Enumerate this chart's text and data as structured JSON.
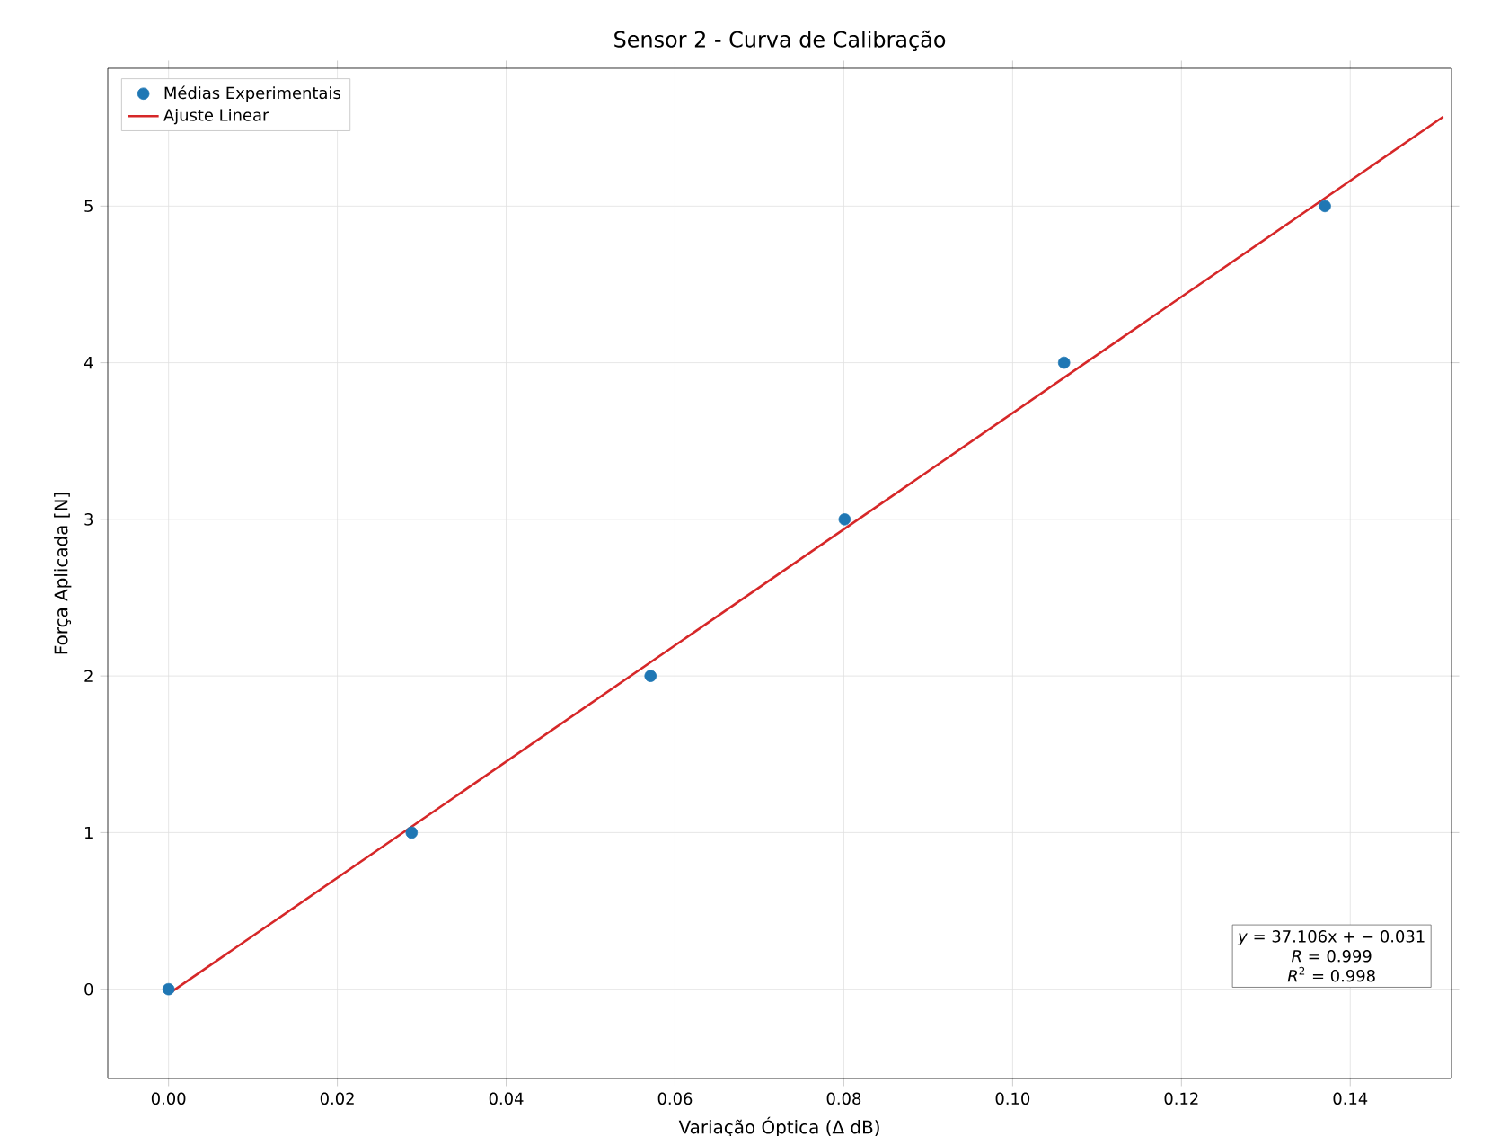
{
  "chart_data": {
    "type": "scatter",
    "title": "Sensor 2 - Curva de Calibração",
    "xlabel": "Variação Óptica (Δ dB)",
    "ylabel": "Força Aplicada [N]",
    "xlim": [
      -0.0072,
      0.152
    ],
    "ylim": [
      -0.57,
      5.88
    ],
    "xticks": [
      {
        "value": 0,
        "label": "0.00"
      },
      0.02,
      0.04,
      0.06,
      0.08,
      {
        "value": 0.1,
        "label": "0.10"
      },
      0.12,
      0.14
    ],
    "yticks": [
      0,
      1,
      2,
      3,
      4,
      5
    ],
    "grid": true,
    "legend": "top left",
    "series": [
      {
        "name": "Médias Experimentais",
        "marker": "circle",
        "color": "#1f77b4",
        "x": [
          0,
          0.0288,
          0.0571,
          0.0801,
          0.1061,
          0.137
        ],
        "values": [
          0,
          1,
          2,
          3,
          4,
          5
        ]
      },
      {
        "name": "Ajuste Linear",
        "type": "line",
        "marker": "none",
        "line_style": "solid",
        "color": "#d62728",
        "x": [
          0,
          0.151
        ],
        "values": [
          -0.03,
          5.57
        ]
      }
    ],
    "annotations": [
      "*y* = 37.106x + − 0.031",
      "*R* = 0.999",
      "*R*$^{2}$ = 0.998"
    ]
  }
}
